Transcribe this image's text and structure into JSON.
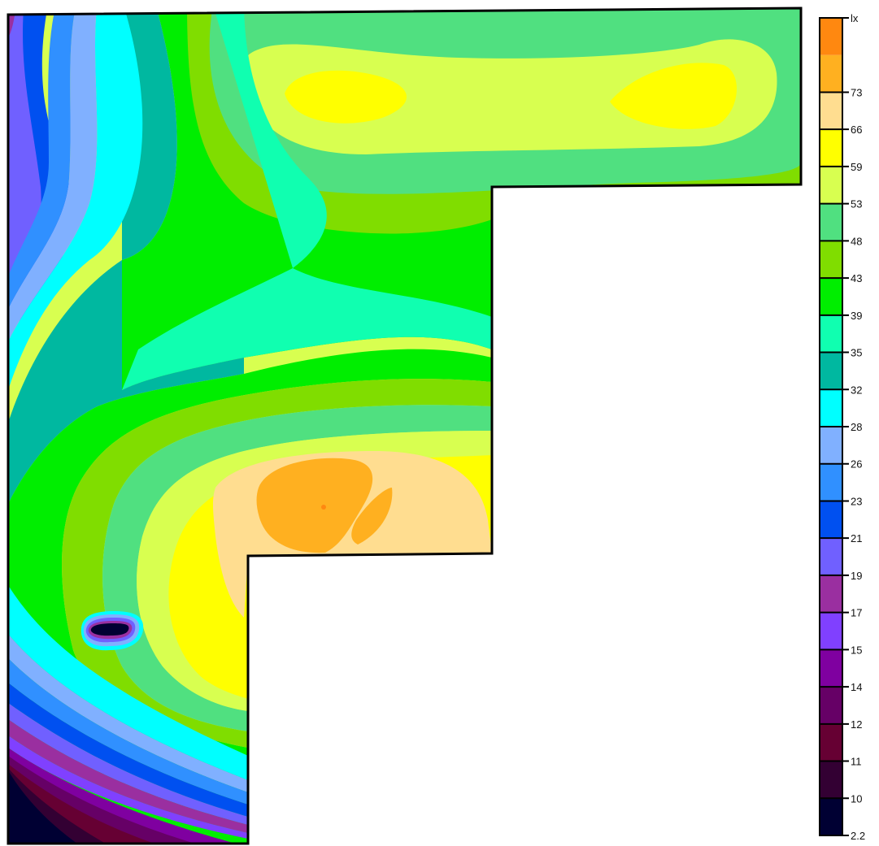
{
  "chart_data": {
    "type": "heatmap",
    "title": "",
    "xlabel": "",
    "ylabel": "",
    "colorbar": {
      "unit_label": "lx",
      "placement": "right",
      "tick_labels": [
        "2.2",
        "10",
        "11",
        "12",
        "14",
        "15",
        "17",
        "19",
        "21",
        "23",
        "26",
        "28",
        "32",
        "35",
        "39",
        "43",
        "48",
        "53",
        "59",
        "66",
        "73"
      ],
      "band_colors": [
        "#000033",
        "#330033",
        "#660033",
        "#660066",
        "#7f00a0",
        "#8040ff",
        "#9a2fa0",
        "#7060ff",
        "#0050f0",
        "#3090ff",
        "#80b0ff",
        "#00ffff",
        "#00b8a0",
        "#10ffb0",
        "#00ee00",
        "#80dd00",
        "#50e080",
        "#d8ff50",
        "#ffff00",
        "#ffdd90",
        "#ffb020",
        "#ff8810"
      ]
    },
    "zones": [
      {
        "name": "hot-spot-center",
        "level": "66-73"
      },
      {
        "name": "bright-area-top-left",
        "level": "53-59"
      },
      {
        "name": "bright-area-top-right",
        "level": "53-59"
      },
      {
        "name": "dark-corner-bottom-left",
        "level": "2.2-10"
      },
      {
        "name": "column-obstruction",
        "level": "2.2-10"
      }
    ],
    "grid": false
  }
}
